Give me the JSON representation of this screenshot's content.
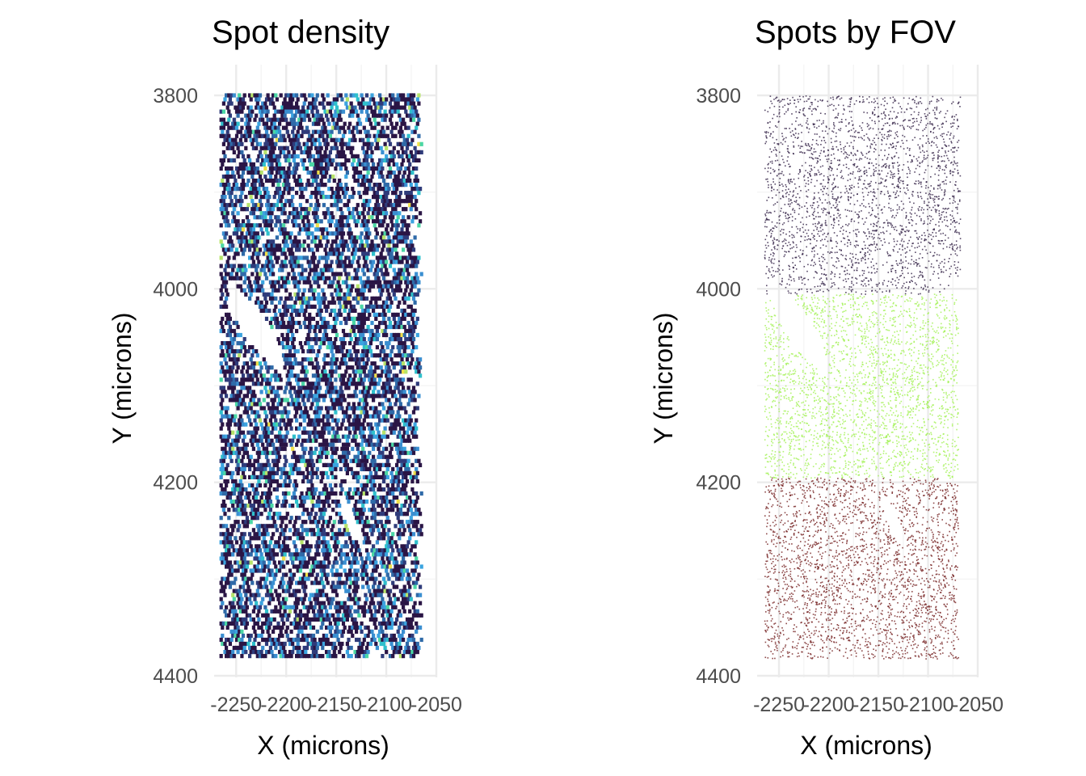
{
  "chart_data": [
    {
      "type": "heatmap",
      "subtype": "hexbin",
      "title": "Spot density",
      "xlabel": "X (microns)",
      "ylabel": "Y (microns)",
      "xlim": [
        -2272,
        -2050
      ],
      "ylim": [
        4400,
        3800
      ],
      "x_ticks": [
        -2250,
        -2200,
        -2150,
        -2100,
        -2050
      ],
      "y_ticks": [
        3800,
        4000,
        4200,
        4400
      ],
      "x_tick_labels": [
        "-2250",
        "-2200",
        "-2150",
        "-2100",
        "-2050"
      ],
      "y_tick_labels": [
        "3800",
        "4000",
        "4200",
        "4400"
      ],
      "data_extent": {
        "x": [
          -2265,
          -2064
        ],
        "y": [
          3800,
          4382
        ]
      },
      "legend": "none",
      "grid": true,
      "palette": [
        "#2a1545",
        "#2f3b7a",
        "#2f6aa8",
        "#3a8fd1",
        "#3ba4e0",
        "#2fc0cc",
        "#4bd7a5",
        "#b6e36a",
        "#f0e04a"
      ]
    },
    {
      "type": "scatter",
      "title": "Spots by FOV",
      "xlabel": "X (microns)",
      "ylabel": "Y (microns)",
      "xlim": [
        -2272,
        -2050
      ],
      "ylim": [
        4400,
        3800
      ],
      "x_ticks": [
        -2250,
        -2200,
        -2150,
        -2100,
        -2050
      ],
      "y_ticks": [
        3800,
        4000,
        4200,
        4400
      ],
      "x_tick_labels": [
        "-2250",
        "-2200",
        "-2150",
        "-2100",
        "-2050"
      ],
      "y_tick_labels": [
        "3800",
        "4000",
        "4200",
        "4400"
      ],
      "legend": "none",
      "grid": true,
      "series": [
        {
          "color": "#3b2a4d",
          "x_range": [
            -2265,
            -2068
          ],
          "y_range": [
            3800,
            4005
          ]
        },
        {
          "color": "#a6f25a",
          "x_range": [
            -2265,
            -2070
          ],
          "y_range": [
            4005,
            4195
          ]
        },
        {
          "color": "#7a2a2a",
          "x_range": [
            -2265,
            -2070
          ],
          "y_range": [
            4195,
            4382
          ]
        }
      ]
    }
  ]
}
